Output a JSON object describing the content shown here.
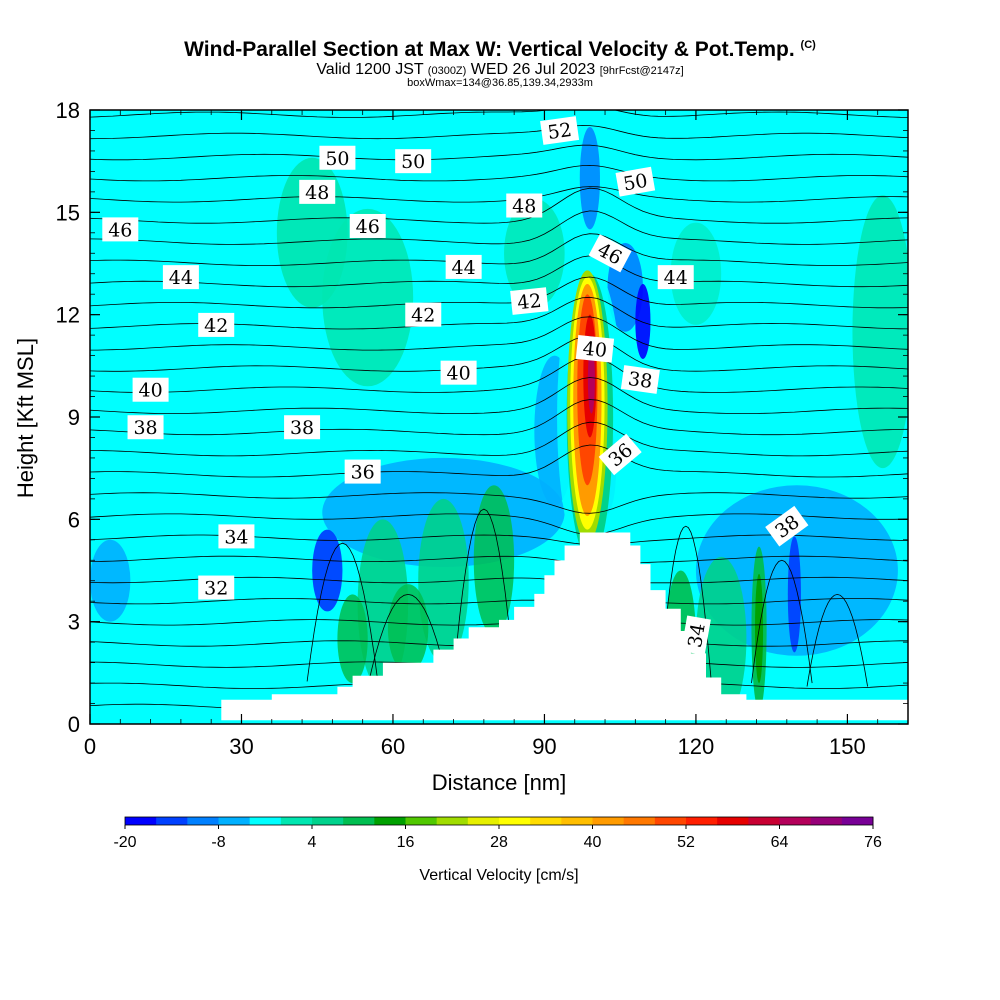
{
  "chart_data": {
    "type": "heatmap",
    "title": "Wind-Parallel Section at Max W: Vertical Velocity & Pot.Temp.",
    "title_mark": "(C)",
    "subtitle": {
      "prefix": "Valid 1200 JST",
      "utc": "(0300Z)",
      "date": "WED 26 Jul 2023",
      "forecast": "[9hrFcst@2147z]"
    },
    "subtitle2": "boxWmax=134@36.85,139.34,2933m",
    "xlabel": "Distance [nm]",
    "ylabel": "Height [Kft MSL]",
    "xlim": [
      0,
      162
    ],
    "ylim": [
      0,
      18
    ],
    "x_ticks": [
      "0",
      "30",
      "60",
      "90",
      "120",
      "150"
    ],
    "y_ticks": [
      "0",
      "3",
      "6",
      "9",
      "12",
      "15",
      "18"
    ],
    "colorbar": {
      "label": "Vertical Velocity [cm/s]",
      "tick_labels": [
        "-20",
        "-8",
        "4",
        "16",
        "28",
        "40",
        "52",
        "64",
        "76"
      ],
      "colors": [
        "#0000ff",
        "#0040ff",
        "#0080ff",
        "#00b0ff",
        "#00ffff",
        "#00e6b0",
        "#00d28c",
        "#00be50",
        "#00a000",
        "#50c800",
        "#a0dc00",
        "#e6f000",
        "#ffff00",
        "#ffdc00",
        "#ffbe00",
        "#ff9b00",
        "#ff7800",
        "#ff4600",
        "#ff1e00",
        "#e60000",
        "#c80032",
        "#b4005a",
        "#960078",
        "#780096"
      ]
    },
    "theta_contour_labels": [
      "52",
      "50",
      "50",
      "50",
      "48",
      "48",
      "46",
      "46",
      "46",
      "44",
      "44",
      "44",
      "42",
      "42",
      "42",
      "40",
      "40",
      "40",
      "38",
      "38",
      "38",
      "38",
      "36",
      "36",
      "34",
      "34",
      "32"
    ],
    "max_vertical_velocity_cm_s": 134,
    "max_w_location": {
      "distance_nm": 99,
      "height_kft": 10
    }
  }
}
